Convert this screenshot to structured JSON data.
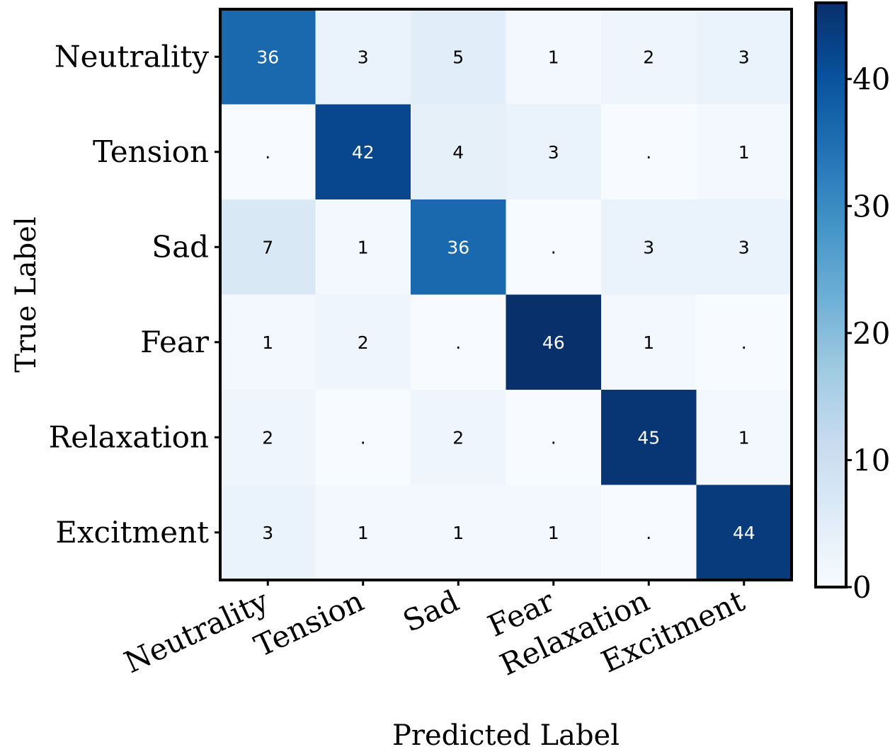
{
  "chart_data": {
    "type": "heatmap",
    "title": "",
    "xlabel": "Predicted Label",
    "ylabel": "True Label",
    "x_categories": [
      "Neutrality",
      "Tension",
      "Sad",
      "Fear",
      "Relaxation",
      "Excitment"
    ],
    "y_categories": [
      "Neutrality",
      "Tension",
      "Sad",
      "Fear",
      "Relaxation",
      "Excitment"
    ],
    "values": [
      [
        36,
        3,
        5,
        1,
        2,
        3
      ],
      [
        0,
        42,
        4,
        3,
        0,
        1
      ],
      [
        7,
        1,
        36,
        0,
        3,
        3
      ],
      [
        1,
        2,
        0,
        46,
        1,
        0
      ],
      [
        2,
        0,
        2,
        0,
        45,
        1
      ],
      [
        3,
        1,
        1,
        1,
        0,
        44
      ]
    ],
    "zero_display": ".",
    "colorscale": "Blues",
    "colorbar": {
      "min": 0,
      "max": 46,
      "ticks": [
        0,
        10,
        20,
        30,
        40
      ]
    },
    "colors": {
      "low": "#f7fbff",
      "high": "#08306b",
      "text_dark": "#000000",
      "text_light": "#ffffff"
    }
  }
}
